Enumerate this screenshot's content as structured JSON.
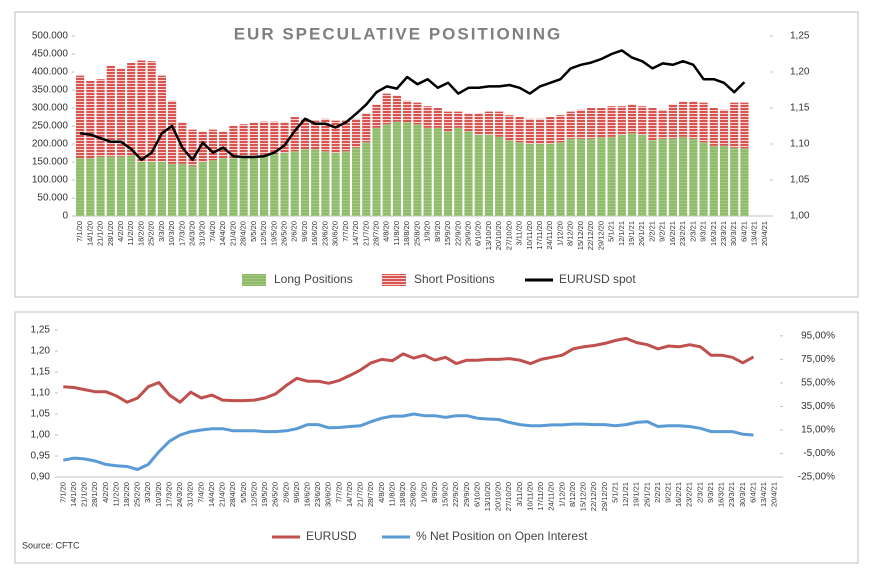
{
  "chart_data": [
    {
      "type": "bar",
      "stacked": true,
      "title": "EUR SPECULATIVE POSITIONING",
      "categories": [
        "7/1/20",
        "14/1/20",
        "21/1/20",
        "28/1/20",
        "4/2/20",
        "11/2/20",
        "18/2/20",
        "25/2/20",
        "3/3/20",
        "10/3/20",
        "17/3/20",
        "24/3/20",
        "31/3/20",
        "7/4/20",
        "14/4/20",
        "21/4/20",
        "28/4/20",
        "5/5/20",
        "12/5/20",
        "19/5/20",
        "26/5/20",
        "2/6/20",
        "9/6/20",
        "16/6/20",
        "23/6/20",
        "30/6/20",
        "7/7/20",
        "14/7/20",
        "21/7/20",
        "28/7/20",
        "4/8/20",
        "11/8/20",
        "18/8/20",
        "25/8/20",
        "1/9/20",
        "8/9/20",
        "15/9/20",
        "22/9/20",
        "29/9/20",
        "6/10/20",
        "13/10/20",
        "20/10/20",
        "27/10/20",
        "3/11/20",
        "10/11/20",
        "17/11/20",
        "24/11/20",
        "1/12/20",
        "8/12/20",
        "15/12/20",
        "22/12/20",
        "29/12/20",
        "5/1/21",
        "12/1/21",
        "19/1/21",
        "26/1/21",
        "2/2/21",
        "9/2/21",
        "16/2/21",
        "23/2/21",
        "2/3/21",
        "9/3/21",
        "16/3/21",
        "23/3/21",
        "30/3/21",
        "6/4/21",
        "13/4/21",
        "20/4/21"
      ],
      "series": [
        {
          "name": "Long Positions",
          "color": "#8fbc6a",
          "values": [
            160000,
            160000,
            165000,
            165000,
            165000,
            168000,
            150000,
            150000,
            150000,
            145000,
            145000,
            140000,
            150000,
            155000,
            160000,
            160000,
            165000,
            165000,
            170000,
            172000,
            175000,
            180000,
            185000,
            185000,
            180000,
            175000,
            180000,
            190000,
            205000,
            245000,
            255000,
            262000,
            260000,
            255000,
            245000,
            245000,
            235000,
            245000,
            235000,
            225000,
            225000,
            220000,
            210000,
            205000,
            200000,
            200000,
            200000,
            205000,
            215000,
            215000,
            215000,
            218000,
            220000,
            225000,
            230000,
            225000,
            210000,
            215000,
            215000,
            220000,
            215000,
            205000,
            195000,
            195000,
            190000,
            188000,
            null,
            null
          ]
        },
        {
          "name": "Short Positions",
          "color": "#d9534f",
          "values": [
            230000,
            215000,
            215000,
            253000,
            245000,
            257000,
            282000,
            280000,
            240000,
            175000,
            115000,
            100000,
            85000,
            85000,
            75000,
            90000,
            90000,
            95000,
            92000,
            90000,
            85000,
            95000,
            85000,
            80000,
            90000,
            90000,
            85000,
            80000,
            80000,
            65000,
            85000,
            73000,
            60000,
            60000,
            60000,
            55000,
            55000,
            45000,
            50000,
            60000,
            65000,
            70000,
            70000,
            70000,
            70000,
            70000,
            75000,
            75000,
            75000,
            80000,
            85000,
            82000,
            85000,
            80000,
            80000,
            80000,
            90000,
            80000,
            95000,
            98000,
            103000,
            110000,
            105000,
            100000,
            125000,
            127000,
            null,
            null
          ]
        },
        {
          "name": "EURUSD spot",
          "color": "#000000",
          "type": "line",
          "axis": "y2",
          "values": [
            1.115,
            1.113,
            1.108,
            1.103,
            1.103,
            1.093,
            1.078,
            1.088,
            1.115,
            1.125,
            1.095,
            1.078,
            1.102,
            1.088,
            1.095,
            1.083,
            1.082,
            1.082,
            1.083,
            1.088,
            1.098,
            1.118,
            1.135,
            1.128,
            1.128,
            1.123,
            1.13,
            1.142,
            1.155,
            1.172,
            1.18,
            1.177,
            1.193,
            1.183,
            1.19,
            1.178,
            1.185,
            1.17,
            1.178,
            1.178,
            1.18,
            1.18,
            1.182,
            1.178,
            1.17,
            1.18,
            1.185,
            1.19,
            1.205,
            1.21,
            1.213,
            1.218,
            1.225,
            1.23,
            1.22,
            1.215,
            1.205,
            1.212,
            1.21,
            1.215,
            1.21,
            1.19,
            1.19,
            1.185,
            1.172,
            1.186,
            null,
            null
          ]
        }
      ],
      "ylim": [
        0,
        500000
      ],
      "yticks": [
        0,
        {
          "value": 50000,
          "label": "50.000"
        },
        {
          "value": 100000,
          "label": "100.000"
        },
        {
          "value": 150000,
          "label": "150.000"
        },
        {
          "value": 200000,
          "label": "200.000"
        },
        {
          "value": 250000,
          "label": "250.000"
        },
        {
          "value": 300000,
          "label": "300.000"
        },
        {
          "value": 350000,
          "label": "350.000"
        },
        {
          "value": 400000,
          "label": "400.000"
        },
        {
          "value": 450000,
          "label": "450.000"
        },
        {
          "value": 500000,
          "label": "500.000"
        }
      ],
      "y2lim": [
        1.0,
        1.25
      ],
      "y2ticks": [
        {
          "value": 1.0,
          "label": "1,00"
        },
        {
          "value": 1.05,
          "label": "1,05"
        },
        {
          "value": 1.1,
          "label": "1,10"
        },
        {
          "value": 1.15,
          "label": "1,15"
        },
        {
          "value": 1.2,
          "label": "1,20"
        },
        {
          "value": 1.25,
          "label": "1,25"
        }
      ],
      "legend": "bottom"
    },
    {
      "type": "line",
      "categories": [
        "7/1/20",
        "14/1/20",
        "21/1/20",
        "28/1/20",
        "4/2/20",
        "11/2/20",
        "18/2/20",
        "25/2/20",
        "3/3/20",
        "10/3/20",
        "17/3/20",
        "24/3/20",
        "31/3/20",
        "7/4/20",
        "14/4/20",
        "21/4/20",
        "28/4/20",
        "5/5/20",
        "12/5/20",
        "19/5/20",
        "26/5/20",
        "2/6/20",
        "9/6/20",
        "16/6/20",
        "23/6/20",
        "30/6/20",
        "7/7/20",
        "14/7/20",
        "21/7/20",
        "28/7/20",
        "4/8/20",
        "11/8/20",
        "18/8/20",
        "25/8/20",
        "1/9/20",
        "8/9/20",
        "15/9/20",
        "22/9/20",
        "29/9/20",
        "6/10/20",
        "13/10/20",
        "20/10/20",
        "27/10/20",
        "3/11/20",
        "10/11/20",
        "17/11/20",
        "24/11/20",
        "1/12/20",
        "8/12/20",
        "15/12/20",
        "22/12/20",
        "29/12/20",
        "5/1/21",
        "12/1/21",
        "19/1/21",
        "26/1/21",
        "2/2/21",
        "9/2/21",
        "16/2/21",
        "23/2/21",
        "2/3/21",
        "9/3/21",
        "16/3/21",
        "23/3/21",
        "30/3/21",
        "6/4/21",
        "13/4/21",
        "20/4/21"
      ],
      "series": [
        {
          "name": "EURUSD",
          "color": "#c0504d",
          "values": [
            1.115,
            1.113,
            1.108,
            1.103,
            1.103,
            1.093,
            1.078,
            1.088,
            1.115,
            1.125,
            1.095,
            1.078,
            1.102,
            1.088,
            1.095,
            1.083,
            1.082,
            1.082,
            1.083,
            1.088,
            1.098,
            1.118,
            1.135,
            1.128,
            1.128,
            1.123,
            1.13,
            1.142,
            1.155,
            1.172,
            1.18,
            1.177,
            1.193,
            1.183,
            1.19,
            1.178,
            1.185,
            1.17,
            1.178,
            1.178,
            1.18,
            1.18,
            1.182,
            1.178,
            1.17,
            1.18,
            1.185,
            1.19,
            1.205,
            1.21,
            1.213,
            1.218,
            1.225,
            1.23,
            1.22,
            1.215,
            1.205,
            1.212,
            1.21,
            1.215,
            1.21,
            1.19,
            1.19,
            1.185,
            1.172,
            1.186,
            null,
            null
          ]
        },
        {
          "name": "% Net Position on Open Interest",
          "color": "#5b9bd5",
          "axis": "y2",
          "values": [
            -10.7,
            -8.9,
            -9.6,
            -11.4,
            -14.3,
            -15.4,
            -16.1,
            -18.6,
            -14.3,
            -3.6,
            5.4,
            10.7,
            13.6,
            15,
            16.1,
            16.1,
            14.3,
            14.3,
            14.3,
            13.6,
            13.6,
            14.3,
            16.1,
            19.6,
            19.6,
            16.8,
            17.1,
            17.9,
            18.6,
            22.1,
            25,
            26.8,
            26.8,
            28.6,
            27.1,
            27.1,
            25.7,
            27.1,
            27.1,
            25,
            24.3,
            23.9,
            21.4,
            19.6,
            18.6,
            18.6,
            19.3,
            19.3,
            20,
            20,
            19.6,
            19.6,
            18.6,
            19.6,
            21.4,
            22.1,
            17.9,
            18.6,
            18.6,
            17.9,
            16.4,
            13.6,
            13.6,
            13.6,
            11.4,
            10.7,
            null,
            null
          ]
        }
      ],
      "ylim": [
        0.9,
        1.25
      ],
      "yticks": [
        {
          "value": 0.9,
          "label": "0,90"
        },
        {
          "value": 0.95,
          "label": "0,95"
        },
        {
          "value": 1.0,
          "label": "1,00"
        },
        {
          "value": 1.05,
          "label": "1,05"
        },
        {
          "value": 1.1,
          "label": "1,10"
        },
        {
          "value": 1.15,
          "label": "1,15"
        },
        {
          "value": 1.2,
          "label": "1,20"
        },
        {
          "value": 1.25,
          "label": "1,25"
        }
      ],
      "y2lim": [
        -25,
        100
      ],
      "y2ticks": [
        {
          "value": -25,
          "label": "-25,00%"
        },
        {
          "value": -5,
          "label": "-5,00%"
        },
        {
          "value": 15,
          "label": "15,00%"
        },
        {
          "value": 35,
          "label": "35,00%"
        },
        {
          "value": 55,
          "label": "55,00%"
        },
        {
          "value": 75,
          "label": "75,00%"
        },
        {
          "value": 95,
          "label": "95,00%"
        }
      ],
      "legend": "bottom"
    }
  ],
  "source": "Source: CFTC"
}
